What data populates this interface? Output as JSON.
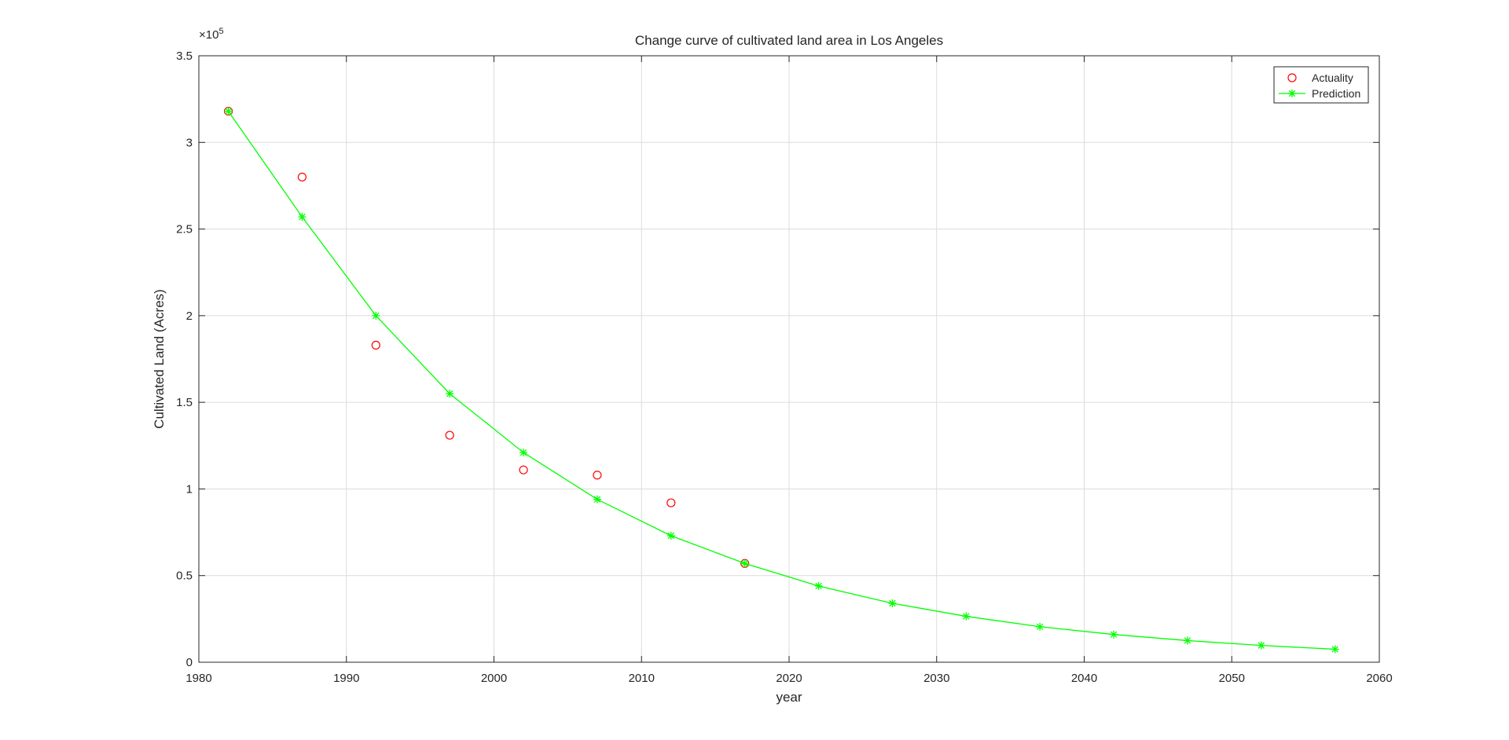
{
  "chart_data": {
    "type": "line",
    "title": "Change curve of cultivated land area in Los Angeles",
    "xlabel": "year",
    "ylabel": "Cultivated Land (Acres)",
    "y_exponent_label": "×10",
    "y_exponent_power": "5",
    "xlim": [
      1980,
      2060
    ],
    "ylim": [
      0,
      3.5
    ],
    "y_scale_factor": 100000,
    "x_ticks": [
      1980,
      1990,
      2000,
      2010,
      2020,
      2030,
      2040,
      2050,
      2060
    ],
    "x_tick_labels": [
      "1980",
      "1990",
      "2000",
      "2010",
      "2020",
      "2030",
      "2040",
      "2050",
      "2060"
    ],
    "y_ticks": [
      0,
      0.5,
      1,
      1.5,
      2,
      2.5,
      3,
      3.5
    ],
    "y_tick_labels": [
      "0",
      "0.5",
      "1",
      "1.5",
      "2",
      "2.5",
      "3",
      "3.5"
    ],
    "grid": true,
    "legend_position": "top-right",
    "series": [
      {
        "name": "Actuality",
        "style": "markers",
        "marker": "circle",
        "color": "#ff0000",
        "x": [
          1982,
          1987,
          1992,
          1997,
          2002,
          2007,
          2012,
          2017
        ],
        "y": [
          3.18,
          2.8,
          1.83,
          1.31,
          1.11,
          1.08,
          0.92,
          0.57
        ]
      },
      {
        "name": "Prediction",
        "style": "line+markers",
        "marker": "asterisk",
        "color": "#00ff00",
        "x": [
          1982,
          1987,
          1992,
          1997,
          2002,
          2007,
          2012,
          2017,
          2022,
          2027,
          2032,
          2037,
          2042,
          2047,
          2052,
          2057
        ],
        "y": [
          3.18,
          2.57,
          2.0,
          1.55,
          1.21,
          0.94,
          0.73,
          0.57,
          0.44,
          0.34,
          0.265,
          0.205,
          0.16,
          0.125,
          0.097,
          0.075
        ]
      }
    ]
  }
}
